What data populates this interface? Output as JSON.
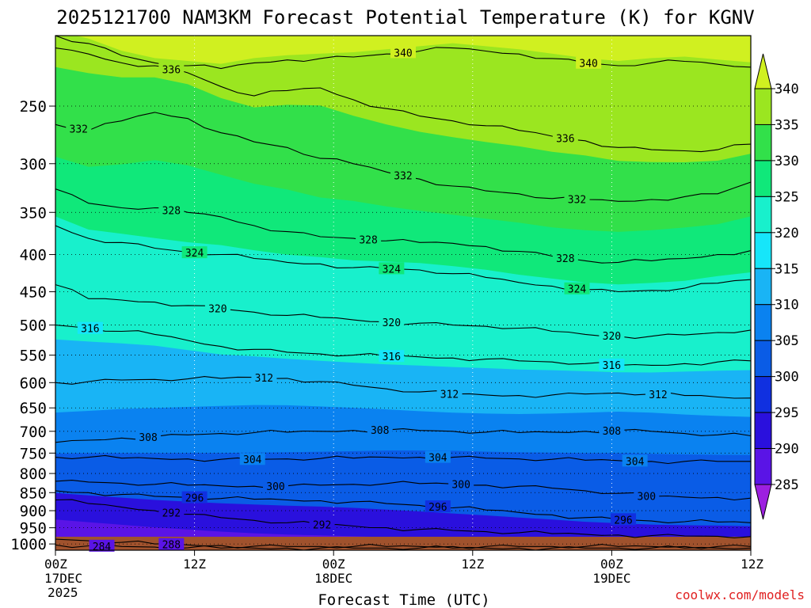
{
  "chart_data": {
    "type": "heatmap",
    "title": "2025121700 NAM3KM Forecast Potential Temperature (K) for KGNV",
    "xlabel": "Forecast Time (UTC)",
    "ylabel": "",
    "credit": "coolwx.com/models",
    "x_ticks": [
      {
        "hour": 0,
        "top": "00Z",
        "mid": "17DEC",
        "bottom": "2025"
      },
      {
        "hour": 12,
        "top": "12Z",
        "mid": "",
        "bottom": ""
      },
      {
        "hour": 24,
        "top": "00Z",
        "mid": "18DEC",
        "bottom": ""
      },
      {
        "hour": 36,
        "top": "12Z",
        "mid": "",
        "bottom": ""
      },
      {
        "hour": 48,
        "top": "00Z",
        "mid": "19DEC",
        "bottom": ""
      },
      {
        "hour": 60,
        "top": "12Z",
        "mid": "",
        "bottom": ""
      }
    ],
    "x_range_hours": [
      0,
      60
    ],
    "y_ticks": [
      250,
      300,
      350,
      400,
      450,
      500,
      550,
      600,
      650,
      700,
      750,
      800,
      850,
      900,
      950,
      1000
    ],
    "y_range_hpa": [
      200,
      1020
    ],
    "y_scale": "log",
    "grid": true,
    "colorbar": {
      "levels": [
        285,
        290,
        295,
        300,
        305,
        310,
        315,
        320,
        325,
        330,
        335,
        340
      ],
      "colors": [
        "#9d20e0",
        "#5a14e6",
        "#2a10dd",
        "#1030e0",
        "#0a5ce6",
        "#0a82f0",
        "#19b4f5",
        "#16e6fa",
        "#18f0cc",
        "#10e87a",
        "#32e04a",
        "#9be620",
        "#d0f020"
      ]
    },
    "ground_color": "#a0522d",
    "series": [
      {
        "theta": 340,
        "label": "340",
        "p": [
          200,
          205,
          213,
          218,
          220,
          222,
          218,
          216,
          215,
          214,
          212,
          210,
          208,
          210,
          212,
          215,
          218,
          220,
          218,
          217,
          219,
          221
        ]
      },
      {
        "theta": 336,
        "label": "336",
        "p": [
          208,
          212,
          218,
          220,
          225,
          235,
          242,
          238,
          236,
          245,
          252,
          258,
          262,
          266,
          270,
          275,
          279,
          285,
          287,
          288,
          287,
          282
        ]
      },
      {
        "theta": 332,
        "label": "332",
        "p": [
          265,
          270,
          262,
          255,
          260,
          272,
          280,
          285,
          295,
          300,
          308,
          315,
          322,
          327,
          330,
          335,
          336,
          338,
          336,
          333,
          330,
          318
        ]
      },
      {
        "theta": 328,
        "label": "328",
        "p": [
          325,
          340,
          345,
          345,
          350,
          355,
          365,
          372,
          378,
          380,
          383,
          385,
          386,
          390,
          396,
          402,
          408,
          410,
          408,
          405,
          400,
          395
        ]
      },
      {
        "theta": 324,
        "label": "324",
        "p": [
          365,
          380,
          385,
          392,
          397,
          400,
          405,
          410,
          412,
          417,
          418,
          420,
          425,
          430,
          437,
          442,
          447,
          450,
          448,
          445,
          438,
          433
        ]
      },
      {
        "theta": 320,
        "label": "320",
        "p": [
          440,
          460,
          462,
          465,
          470,
          475,
          480,
          485,
          488,
          492,
          495,
          497,
          500,
          502,
          505,
          510,
          515,
          518,
          518,
          516,
          512,
          508
        ]
      },
      {
        "theta": 316,
        "label": "316",
        "p": [
          500,
          505,
          510,
          515,
          525,
          535,
          540,
          545,
          548,
          550,
          552,
          553,
          555,
          557,
          560,
          562,
          565,
          568,
          568,
          565,
          562,
          560
        ]
      },
      {
        "theta": 312,
        "label": "312",
        "p": [
          600,
          598,
          595,
          594,
          593,
          592,
          590,
          592,
          598,
          605,
          612,
          618,
          622,
          624,
          625,
          624,
          622,
          620,
          622,
          625,
          628,
          630
        ]
      },
      {
        "theta": 308,
        "label": "308",
        "p": [
          725,
          720,
          715,
          712,
          708,
          705,
          703,
          702,
          700,
          698,
          697,
          698,
          700,
          702,
          703,
          702,
          700,
          698,
          700,
          705,
          708,
          710
        ]
      },
      {
        "theta": 304,
        "label": "304",
        "p": [
          760,
          760,
          762,
          763,
          764,
          765,
          765,
          764,
          763,
          762,
          760,
          760,
          760,
          762,
          764,
          765,
          767,
          768,
          770,
          770,
          770,
          770
        ]
      },
      {
        "theta": 300,
        "label": "300",
        "p": [
          820,
          822,
          825,
          828,
          830,
          832,
          833,
          832,
          830,
          828,
          826,
          826,
          827,
          830,
          833,
          838,
          845,
          852,
          860,
          862,
          863,
          865
        ]
      },
      {
        "theta": 296,
        "label": "296",
        "p": [
          845,
          850,
          855,
          860,
          863,
          866,
          868,
          870,
          872,
          875,
          880,
          885,
          892,
          898,
          905,
          912,
          920,
          925,
          930,
          932,
          933,
          935
        ]
      },
      {
        "theta": 292,
        "label": "292",
        "p": [
          870,
          880,
          890,
          900,
          910,
          920,
          928,
          935,
          940,
          945,
          950,
          955,
          958,
          962,
          965,
          968,
          970,
          972,
          974,
          975,
          976,
          977
        ]
      },
      {
        "theta": 288,
        "label": "288",
        "p": [
          985,
          990,
          995,
          1000,
          1003,
          1005,
          1007,
          1008,
          1008,
          1008,
          1008,
          1008,
          1008,
          1008,
          1008,
          1008,
          1008,
          1008,
          1008,
          1008,
          1008,
          1008
        ]
      },
      {
        "theta": 284,
        "label": "284",
        "p": [
          1003,
          1006,
          1008,
          1010,
          1012,
          1013,
          1013,
          1013,
          1013,
          1013,
          1013,
          1013,
          1013,
          1013,
          1013,
          1013,
          1013,
          1013,
          1013,
          1013,
          1013,
          1013
        ]
      }
    ],
    "label_hours": {
      "340": [
        30,
        46
      ],
      "336": [
        10,
        44
      ],
      "332": [
        2,
        30,
        45
      ],
      "328": [
        10,
        27,
        44
      ],
      "324": [
        12,
        29,
        45
      ],
      "320": [
        14,
        29,
        48
      ],
      "316": [
        3,
        29,
        48
      ],
      "312": [
        18,
        34,
        52
      ],
      "308": [
        8,
        28,
        48
      ],
      "304": [
        17,
        33,
        50
      ],
      "300": [
        19,
        35,
        51
      ],
      "296": [
        12,
        33,
        49
      ],
      "292": [
        10,
        23
      ],
      "288": [
        10
      ],
      "284": [
        4
      ]
    }
  }
}
